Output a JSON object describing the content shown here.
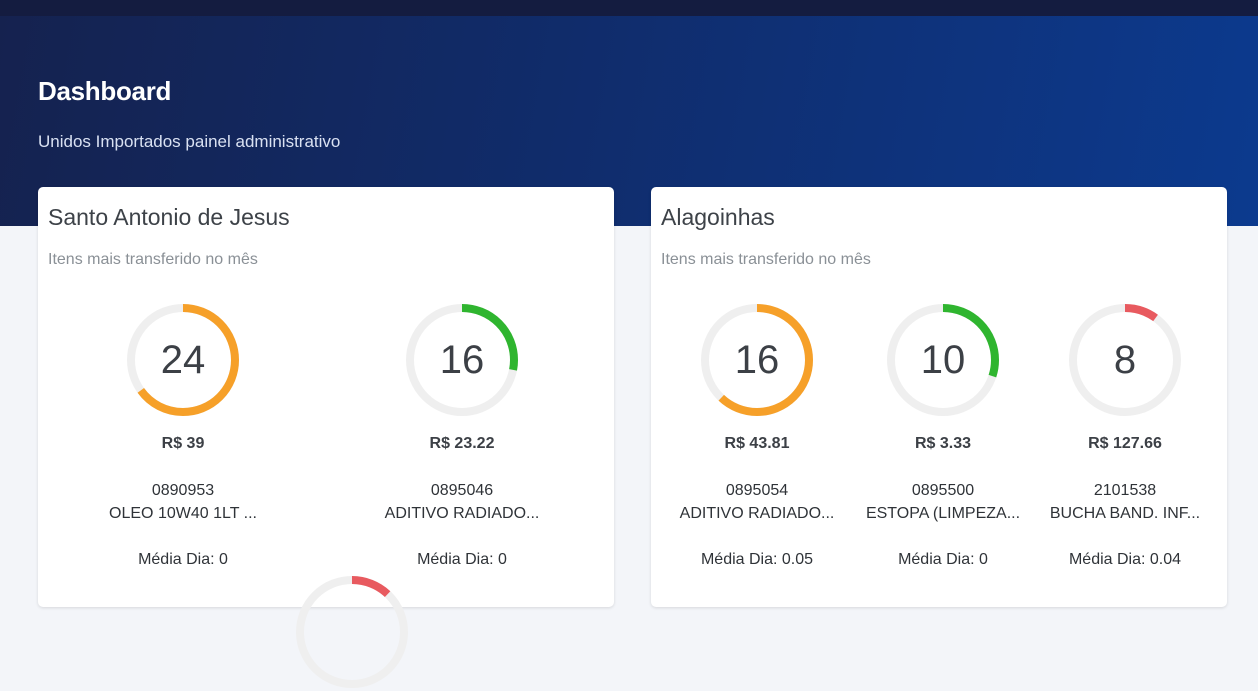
{
  "header": {
    "title": "Dashboard",
    "subtitle": "Unidos Importados painel administrativo"
  },
  "colors": {
    "orange": "#f6a029",
    "green": "#2fb52f",
    "red": "#e85a5f",
    "track": "#efefef"
  },
  "cards": [
    {
      "title": "Santo Antonio de Jesus",
      "subtitle": "Itens mais transferido no mês",
      "items": [
        {
          "count": "24",
          "price": "R$ 39",
          "code": "0890953",
          "desc": "OLEO 10W40 1LT ...",
          "media": "Média Dia: 0",
          "fill": 0.65,
          "color": "orange"
        },
        {
          "count": "16",
          "price": "R$ 23.22",
          "code": "0895046",
          "desc": "ADITIVO RADIADO...",
          "media": "Média Dia: 0",
          "fill": 0.28,
          "color": "green"
        }
      ],
      "extra_gauge": {
        "fill": 0.12,
        "color": "red"
      }
    },
    {
      "title": "Alagoinhas",
      "subtitle": "Itens mais transferido no mês",
      "items": [
        {
          "count": "16",
          "price": "R$ 43.81",
          "code": "0895054",
          "desc": "ADITIVO RADIADO...",
          "media": "Média Dia: 0.05",
          "fill": 0.62,
          "color": "orange"
        },
        {
          "count": "10",
          "price": "R$ 3.33",
          "code": "0895500",
          "desc": "ESTOPA (LIMPEZA...",
          "media": "Média Dia: 0",
          "fill": 0.3,
          "color": "green"
        },
        {
          "count": "8",
          "price": "R$ 127.66",
          "code": "2101538",
          "desc": "BUCHA BAND. INF...",
          "media": "Média Dia: 0.04",
          "fill": 0.1,
          "color": "red"
        }
      ]
    }
  ]
}
